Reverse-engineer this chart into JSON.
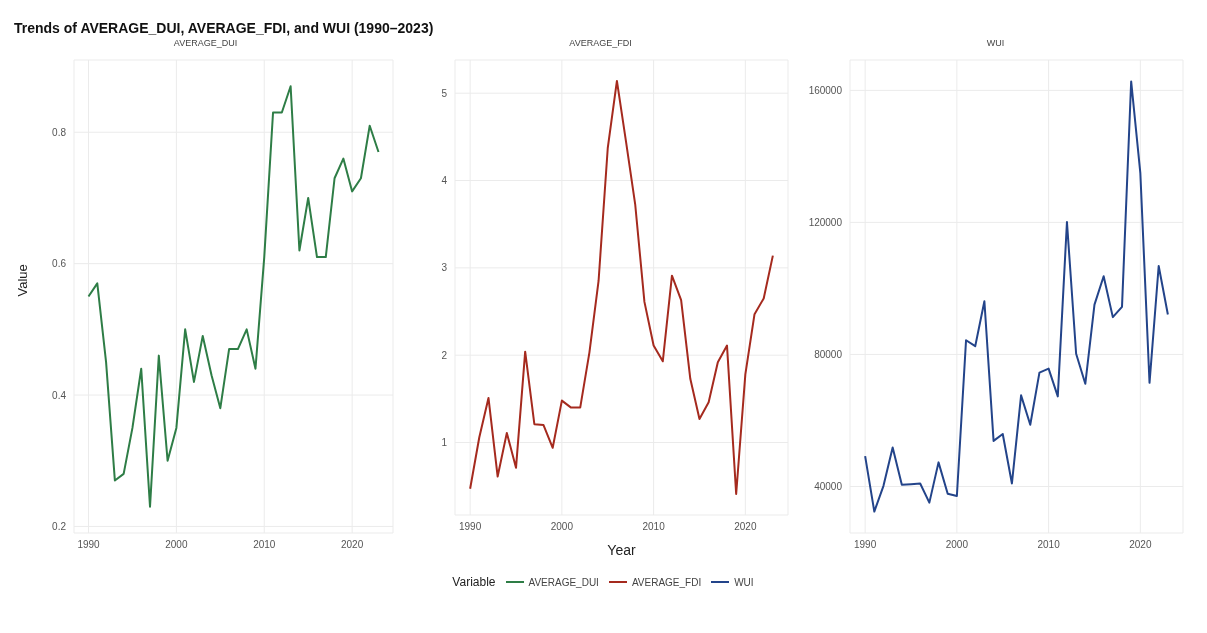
{
  "chart_data": [
    {
      "type": "line",
      "title": "Trends of AVERAGE_DUI, AVERAGE_FDI, and WUI (1990–2023)",
      "subtitle": "AVERAGE_DUI",
      "ylabel": "Value",
      "x": [
        1990,
        1991,
        1992,
        1993,
        1994,
        1995,
        1996,
        1997,
        1998,
        1999,
        2000,
        2001,
        2002,
        2003,
        2004,
        2005,
        2006,
        2007,
        2008,
        2009,
        2010,
        2011,
        2012,
        2013,
        2014,
        2015,
        2016,
        2017,
        2018,
        2019,
        2020,
        2021,
        2022,
        2023
      ],
      "xlim": [
        1988.35,
        2024.65
      ],
      "xticks": [
        1990,
        2000,
        2010,
        2020
      ],
      "ylim": [
        0.19,
        0.91
      ],
      "yticks": [
        0.2,
        0.4,
        0.6,
        0.8
      ],
      "grid": true,
      "series": [
        {
          "name": "AVERAGE_DUI",
          "color": "#2e7d46",
          "values": [
            0.55,
            0.57,
            0.45,
            0.27,
            0.28,
            0.35,
            0.44,
            0.23,
            0.46,
            0.3,
            0.35,
            0.5,
            0.42,
            0.49,
            0.43,
            0.38,
            0.47,
            0.47,
            0.5,
            0.44,
            0.61,
            0.83,
            0.83,
            0.87,
            0.62,
            0.7,
            0.61,
            0.61,
            0.73,
            0.76,
            0.71,
            0.73,
            0.81,
            0.77
          ]
        }
      ]
    },
    {
      "type": "line",
      "subtitle": "AVERAGE_FDI",
      "xlabel": "Year",
      "legend": "bottom",
      "legend_title": "Variable",
      "x": [
        1990,
        1991,
        1992,
        1993,
        1994,
        1995,
        1996,
        1997,
        1998,
        1999,
        2000,
        2001,
        2002,
        2003,
        2004,
        2005,
        2006,
        2007,
        2008,
        2009,
        2010,
        2011,
        2012,
        2013,
        2014,
        2015,
        2016,
        2017,
        2018,
        2019,
        2020,
        2021,
        2022,
        2023
      ],
      "xlim": [
        1988.35,
        2024.65
      ],
      "xticks": [
        1990,
        2000,
        2010,
        2020
      ],
      "ylim": [
        0.17,
        5.38
      ],
      "yticks": [
        1,
        2,
        3,
        4,
        5
      ],
      "grid": true,
      "series": [
        {
          "name": "AVERAGE_FDI",
          "color": "#a52a1e",
          "values": [
            0.47,
            1.06,
            1.51,
            0.61,
            1.11,
            0.71,
            2.04,
            1.21,
            1.2,
            0.94,
            1.48,
            1.4,
            1.4,
            2.03,
            2.85,
            4.37,
            5.14,
            4.44,
            3.72,
            2.61,
            2.11,
            1.93,
            2.91,
            2.63,
            1.73,
            1.27,
            1.46,
            1.92,
            2.11,
            0.41,
            1.78,
            2.47,
            2.65,
            3.14
          ]
        }
      ]
    },
    {
      "type": "line",
      "subtitle": "WUI",
      "x": [
        1990,
        1991,
        1992,
        1993,
        1994,
        1995,
        1996,
        1997,
        1998,
        1999,
        2000,
        2001,
        2002,
        2003,
        2004,
        2005,
        2006,
        2007,
        2008,
        2009,
        2010,
        2011,
        2012,
        2013,
        2014,
        2015,
        2016,
        2017,
        2018,
        2019,
        2020,
        2021,
        2022,
        2023
      ],
      "xlim": [
        1988.35,
        2024.65
      ],
      "xticks": [
        1990,
        2000,
        2010,
        2020
      ],
      "ylim": [
        25900,
        169200
      ],
      "yticks": [
        40000,
        80000,
        120000,
        160000
      ],
      "grid": true,
      "series": [
        {
          "name": "WUI",
          "color": "#23448a",
          "values": [
            49200,
            32400,
            40200,
            51800,
            40500,
            40700,
            40900,
            35100,
            47300,
            37800,
            37100,
            84300,
            82500,
            96100,
            53800,
            55900,
            40900,
            67600,
            58700,
            74500,
            75700,
            67300,
            120100,
            80200,
            71100,
            95100,
            103700,
            91300,
            94400,
            162700,
            134900,
            71400,
            106800,
            92100
          ]
        }
      ]
    }
  ]
}
